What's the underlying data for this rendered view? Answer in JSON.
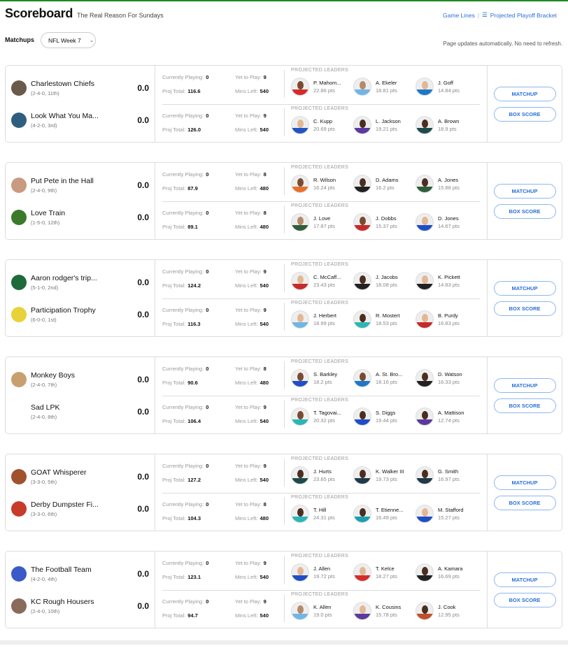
{
  "header": {
    "title": "Scoreboard",
    "subtitle": "The Real Reason For Sundays",
    "game_lines": "Game Lines",
    "playoff_bracket": "Projected Playoff Bracket"
  },
  "filters": {
    "label": "Matchups",
    "week": "NFL Week 7"
  },
  "note": "Page updates automatically. No need to refresh.",
  "labels": {
    "currently_playing": "Currently Playing:",
    "yet_to_play": "Yet to Play:",
    "proj_total": "Proj Total:",
    "mins_left": "Mins Left:",
    "projected_leaders": "PROJECTED LEADERS",
    "matchup": "MATCHUP",
    "box_score": "BOX SCORE"
  },
  "accent": "#2a6fd6",
  "matchups": [
    {
      "teams": [
        {
          "name": "Charlestown Chiefs",
          "record": "(2-4-0, 11th)",
          "score": "0.0",
          "color": "#6b5a4a",
          "playing": "0",
          "yet": "9",
          "proj": "116.6",
          "mins": "540",
          "leaders": [
            {
              "name": "P. Mahom...",
              "pts": "22.86 pts",
              "jersey": "#d62b2b",
              "skin": "#7a4a30"
            },
            {
              "name": "A. Ekeler",
              "pts": "18.81 pts",
              "jersey": "#6fb6e6",
              "skin": "#b48a6a"
            },
            {
              "name": "J. Goff",
              "pts": "14.84 pts",
              "jersey": "#1e78c8",
              "skin": "#e2b894"
            }
          ]
        },
        {
          "name": "Look What You Ma...",
          "record": "(4-2-0, 3rd)",
          "score": "0.0",
          "color": "#2f5f7f",
          "playing": "0",
          "yet": "9",
          "proj": "126.0",
          "mins": "540",
          "leaders": [
            {
              "name": "C. Kupp",
              "pts": "20.69 pts",
              "jersey": "#2255c4",
              "skin": "#e2b894"
            },
            {
              "name": "L. Jackson",
              "pts": "19.21 pts",
              "jersey": "#5b3aa0",
              "skin": "#4a2e1e"
            },
            {
              "name": "A. Brown",
              "pts": "18.9 pts",
              "jersey": "#1f4a4a",
              "skin": "#4a2e1e"
            }
          ]
        }
      ]
    },
    {
      "teams": [
        {
          "name": "Put Pete in the Hall",
          "record": "(2-4-0, 9th)",
          "score": "0.0",
          "color": "#c89a80",
          "playing": "0",
          "yet": "8",
          "proj": "87.9",
          "mins": "480",
          "leaders": [
            {
              "name": "R. Wilson",
              "pts": "16.24 pts",
              "jersey": "#e8702a",
              "skin": "#7a4a30"
            },
            {
              "name": "D. Adams",
              "pts": "16.2 pts",
              "jersey": "#222222",
              "skin": "#4a2e1e"
            },
            {
              "name": "A. Jones",
              "pts": "15.88 pts",
              "jersey": "#2e5e3a",
              "skin": "#4a2e1e"
            }
          ]
        },
        {
          "name": "Love Train",
          "record": "(1-5-0, 12th)",
          "score": "0.0",
          "color": "#3a7a2a",
          "playing": "0",
          "yet": "8",
          "proj": "89.1",
          "mins": "480",
          "leaders": [
            {
              "name": "J. Love",
              "pts": "17.87 pts",
              "jersey": "#2e5e3a",
              "skin": "#b48a6a"
            },
            {
              "name": "J. Dobbs",
              "pts": "15.37 pts",
              "jersey": "#c62a2a",
              "skin": "#7a4a30"
            },
            {
              "name": "D. Jones",
              "pts": "14.67 pts",
              "jersey": "#1e4ec8",
              "skin": "#e2b894"
            }
          ]
        }
      ]
    },
    {
      "teams": [
        {
          "name": "Aaron rodger's trip...",
          "record": "(5-1-0, 2nd)",
          "score": "0.0",
          "color": "#1e6a3a",
          "playing": "0",
          "yet": "9",
          "proj": "124.2",
          "mins": "540",
          "leaders": [
            {
              "name": "C. McCaff...",
              "pts": "23.43 pts",
              "jersey": "#c62a2a",
              "skin": "#e2b894"
            },
            {
              "name": "J. Jacobs",
              "pts": "18.08 pts",
              "jersey": "#222222",
              "skin": "#4a2e1e"
            },
            {
              "name": "K. Pickett",
              "pts": "14.83 pts",
              "jersey": "#222222",
              "skin": "#e2b894"
            }
          ]
        },
        {
          "name": "Participation Trophy",
          "record": "(6-0-0, 1st)",
          "score": "0.0",
          "color": "#e8d23a",
          "playing": "0",
          "yet": "9",
          "proj": "116.3",
          "mins": "540",
          "leaders": [
            {
              "name": "J. Herbert",
              "pts": "18.99 pts",
              "jersey": "#6fb6e6",
              "skin": "#e2b894"
            },
            {
              "name": "R. Mostert",
              "pts": "18.53 pts",
              "jersey": "#2ab6b6",
              "skin": "#4a2e1e"
            },
            {
              "name": "B. Purdy",
              "pts": "16.83 pts",
              "jersey": "#c62a2a",
              "skin": "#e2b894"
            }
          ]
        }
      ]
    },
    {
      "teams": [
        {
          "name": "Monkey Boys",
          "record": "(2-4-0, 7th)",
          "score": "0.0",
          "color": "#c8a070",
          "playing": "0",
          "yet": "8",
          "proj": "90.6",
          "mins": "480",
          "leaders": [
            {
              "name": "S. Barkley",
              "pts": "18.2 pts",
              "jersey": "#1e4ec8",
              "skin": "#7a4a30"
            },
            {
              "name": "A. St. Bro...",
              "pts": "18.16 pts",
              "jersey": "#1e78c8",
              "skin": "#7a4a30"
            },
            {
              "name": "D. Watson",
              "pts": "16.33 pts",
              "jersey": "#222222",
              "skin": "#4a2e1e"
            }
          ]
        },
        {
          "name": "Sad LPK",
          "record": "(2-4-0, 8th)",
          "score": "0.0",
          "color": "#ffffff",
          "playing": "0",
          "yet": "9",
          "proj": "106.4",
          "mins": "540",
          "leaders": [
            {
              "name": "T. Tagovai...",
              "pts": "20.32 pts",
              "jersey": "#2ab6b6",
              "skin": "#7a4a30"
            },
            {
              "name": "S. Diggs",
              "pts": "19.44 pts",
              "jersey": "#1e4ec8",
              "skin": "#4a2e1e"
            },
            {
              "name": "A. Mattison",
              "pts": "12.74 pts",
              "jersey": "#5b3aa0",
              "skin": "#4a2e1e"
            }
          ]
        }
      ]
    },
    {
      "teams": [
        {
          "name": "GOAT Whisperer",
          "record": "(3-3-0, 5th)",
          "score": "0.0",
          "color": "#a0522d",
          "playing": "0",
          "yet": "9",
          "proj": "127.2",
          "mins": "540",
          "leaders": [
            {
              "name": "J. Hurts",
              "pts": "23.65 pts",
              "jersey": "#1f4a4a",
              "skin": "#4a2e1e"
            },
            {
              "name": "K. Walker III",
              "pts": "19.73 pts",
              "jersey": "#1f3a4a",
              "skin": "#4a2e1e"
            },
            {
              "name": "G. Smith",
              "pts": "16.97 pts",
              "jersey": "#1f3a4a",
              "skin": "#4a2e1e"
            }
          ]
        },
        {
          "name": "Derby Dumpster Fi...",
          "record": "(3-3-0, 6th)",
          "score": "0.0",
          "color": "#c83a2a",
          "playing": "0",
          "yet": "8",
          "proj": "104.3",
          "mins": "480",
          "leaders": [
            {
              "name": "T. Hill",
              "pts": "24.31 pts",
              "jersey": "#2ab6b6",
              "skin": "#4a2e1e"
            },
            {
              "name": "T. Etienne...",
              "pts": "16.49 pts",
              "jersey": "#1aa0b0",
              "skin": "#4a2e1e"
            },
            {
              "name": "M. Stafford",
              "pts": "15.27 pts",
              "jersey": "#1e4ec8",
              "skin": "#e2b894"
            }
          ]
        }
      ]
    },
    {
      "teams": [
        {
          "name": "The Football Team",
          "record": "(4-2-0, 4th)",
          "score": "0.0",
          "color": "#3a5ac8",
          "playing": "0",
          "yet": "9",
          "proj": "123.1",
          "mins": "540",
          "leaders": [
            {
              "name": "J. Allen",
              "pts": "19.72 pts",
              "jersey": "#1e4ec8",
              "skin": "#e2b894"
            },
            {
              "name": "T. Kelce",
              "pts": "18.27 pts",
              "jersey": "#d62b2b",
              "skin": "#e2b894"
            },
            {
              "name": "A. Kamara",
              "pts": "16.69 pts",
              "jersey": "#222222",
              "skin": "#4a2e1e"
            }
          ]
        },
        {
          "name": "KC Rough Housers",
          "record": "(2-4-0, 10th)",
          "score": "0.0",
          "color": "#8a6a5a",
          "playing": "0",
          "yet": "9",
          "proj": "94.7",
          "mins": "540",
          "leaders": [
            {
              "name": "K. Allen",
              "pts": "19.0 pts",
              "jersey": "#6fb6e6",
              "skin": "#b48a6a"
            },
            {
              "name": "K. Cousins",
              "pts": "15.78 pts",
              "jersey": "#5b3aa0",
              "skin": "#e2b894"
            },
            {
              "name": "J. Cook",
              "pts": "12.95 pts",
              "jersey": "#c0502a",
              "skin": "#4a2e1e"
            }
          ]
        }
      ]
    }
  ]
}
